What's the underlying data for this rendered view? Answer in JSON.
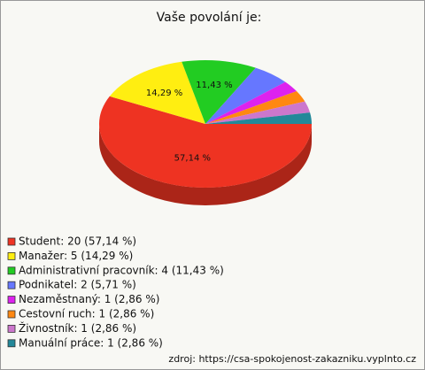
{
  "chart_data": {
    "type": "pie",
    "title": "Vaše povolání je:",
    "categories": [
      "Student: 20 (57,14 %)",
      "Manažer: 5 (14,29 %)",
      "Administrativní pracovník: 4 (11,43 %)",
      "Podnikatel: 2 (5,71 %)",
      "Nezaměstnaný: 1 (2,86 %)",
      "Cestovní ruch: 1 (2,86 %)",
      "Živnostník: 1 (2,86 %)",
      "Manuální práce: 1 (2,86 %)"
    ],
    "values": [
      57.14,
      14.29,
      11.43,
      5.71,
      2.86,
      2.86,
      2.86,
      2.86
    ],
    "value_labels": [
      "57,14 %",
      "14,29 %",
      "11,43 %",
      null,
      null,
      null,
      null,
      null
    ],
    "colors": [
      "#ee3322",
      "#ffee11",
      "#22cc22",
      "#6677ff",
      "#dd22ee",
      "#ff8811",
      "#cc77cc",
      "#228899"
    ],
    "legend": "bottom-left",
    "source": "zdroj: https://csa-spokojenost-zakazniku.vyplnto.cz"
  }
}
